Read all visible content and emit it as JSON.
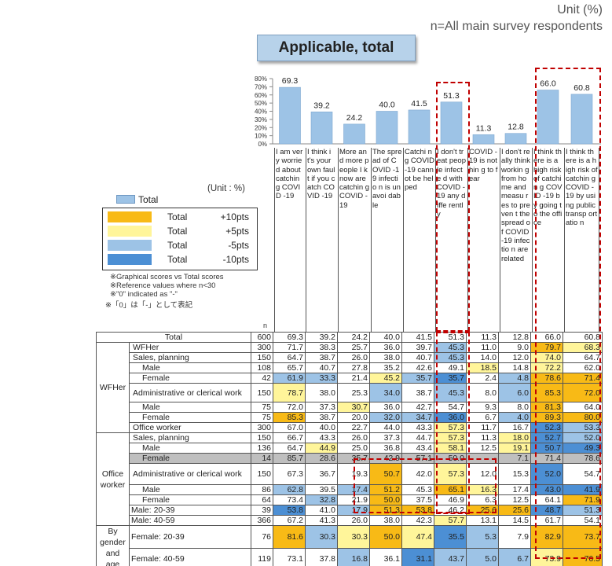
{
  "header": {
    "unit": "Unit (%)",
    "n_note": "n=All main survey respondents",
    "title": "Applicable, total"
  },
  "legend": {
    "unit": "(Unit : %)",
    "total_label": "Total",
    "rows": [
      {
        "a": "Total",
        "b": "+10pts",
        "color": "#f8ba16"
      },
      {
        "a": "Total",
        "b": "+5pts",
        "color": "#fff59a"
      },
      {
        "a": "Total",
        "b": "-5pts",
        "color": "#9dc3e6"
      },
      {
        "a": "Total",
        "b": "-10pts",
        "color": "#4c8fd4"
      }
    ],
    "notes": [
      "※Graphical scores vs Total scores",
      "※Reference values where n<30",
      "※\"0\" indicated as \"-\"",
      "※「0」は「-」として表記"
    ]
  },
  "chart_data": {
    "type": "bar",
    "ylim": [
      0,
      80
    ],
    "ytick_labels": [
      "80%",
      "70%",
      "60%",
      "50%",
      "40%",
      "30%",
      "20%",
      "10%",
      "0%"
    ],
    "values": [
      69.3,
      39.2,
      24.2,
      40.0,
      41.5,
      51.3,
      11.3,
      12.8,
      66.0,
      60.8
    ],
    "categories": [
      "I am very worried about catching COVID-19",
      "I think it's your own fault if you catch COVID-19",
      "More and more people I know are catching COVID-19",
      "The spread of COVID-19 infection is unavoidable",
      "Catching COVID-19 cannot be helped",
      "I don't treat people infected with COVID-19 any differently",
      "COVID-19 is nothing to fear",
      "I don't really think working from home and measures to prevent the spread of COVID-19 infection are related",
      "I think there is a high risk of catching COVID-19 by going to the office",
      "I think there is a high risk of catching COVID-19 by using public transportation"
    ],
    "col_text": [
      "I am very worrie d about catchin g COVID -19",
      "I think it's your own fault if you catch COVID -19",
      "More and more people I know are catchin g COVID -19",
      "The spread of COVID -19 infectio n is unavoi dable",
      "Catchi ng COVID -19 cannot be helped",
      "I don't treat people infecte d with COVID -19 any diffe rently",
      "COVID -19 is nothin g to fear",
      "I don't really think workin g from home and measu res to preven t the spread of COVID -19 infectio n are related",
      "I think there is a high risk of catchin g COVID -19 by going to the office",
      "I think there is a high risk of catchin g COVID -19 by using public transp ortatio n"
    ],
    "value_labels": [
      "69.3",
      "39.2",
      "24.2",
      "40.0",
      "41.5",
      "51.3",
      "11.3",
      "12.8",
      "66.0",
      "60.8"
    ],
    "series_name": "Total",
    "bar_color": "#9dc3e6"
  },
  "table": {
    "n_header": "n",
    "groups": [
      {
        "label": "WFHer",
        "start": 1,
        "span": 8
      },
      {
        "label": "Office worker",
        "start": 9,
        "span": 8
      },
      {
        "label": "By gender and age",
        "start": 17,
        "span": 4
      }
    ],
    "rows": [
      {
        "label": "Total",
        "n": "600",
        "v": [
          "69.3",
          "39.2",
          "24.2",
          "40.0",
          "41.5",
          "51.3",
          "11.3",
          "12.8",
          "66.0",
          "60.8"
        ],
        "c": [
          "",
          "",
          "",
          "",
          "",
          "",
          "",
          "",
          "",
          ""
        ],
        "indent": 0
      },
      {
        "label": "WFHer",
        "n": "300",
        "v": [
          "71.7",
          "38.3",
          "25.7",
          "36.0",
          "39.7",
          "45.3",
          "11.0",
          "9.0",
          "79.7",
          "68.3"
        ],
        "c": [
          "",
          "",
          "",
          "",
          "",
          "l",
          "",
          "",
          "o",
          "y"
        ],
        "indent": 1
      },
      {
        "label": "Sales, planning",
        "n": "150",
        "v": [
          "64.7",
          "38.7",
          "26.0",
          "38.0",
          "40.7",
          "45.3",
          "14.0",
          "12.0",
          "74.0",
          "64.7"
        ],
        "c": [
          "",
          "",
          "",
          "",
          "",
          "l",
          "",
          "",
          "y",
          ""
        ],
        "indent": 1
      },
      {
        "label": "Male",
        "n": "108",
        "v": [
          "65.7",
          "40.7",
          "27.8",
          "35.2",
          "42.6",
          "49.1",
          "18.5",
          "14.8",
          "72.2",
          "62.0"
        ],
        "c": [
          "",
          "",
          "",
          "",
          "",
          "",
          "y",
          "",
          "y",
          ""
        ],
        "indent": 2
      },
      {
        "label": "Female",
        "n": "42",
        "v": [
          "61.9",
          "33.3",
          "21.4",
          "45.2",
          "35.7",
          "35.7",
          "2.4",
          "4.8",
          "78.6",
          "71.4"
        ],
        "c": [
          "l",
          "l",
          "",
          "y",
          "l",
          "d",
          "",
          "l",
          "o",
          "o"
        ],
        "indent": 2
      },
      {
        "label": "Administrative or clerical work",
        "n": "150",
        "v": [
          "78.7",
          "38.0",
          "25.3",
          "34.0",
          "38.7",
          "45.3",
          "8.0",
          "6.0",
          "85.3",
          "72.0"
        ],
        "c": [
          "y",
          "",
          "",
          "l",
          "",
          "l",
          "",
          "l",
          "o",
          "o"
        ],
        "indent": 1
      },
      {
        "label": "Male",
        "n": "75",
        "v": [
          "72.0",
          "37.3",
          "30.7",
          "36.0",
          "42.7",
          "54.7",
          "9.3",
          "8.0",
          "81.3",
          "64.0"
        ],
        "c": [
          "",
          "",
          "y",
          "",
          "",
          "",
          "",
          "",
          "o",
          ""
        ],
        "indent": 2
      },
      {
        "label": "Female",
        "n": "75",
        "v": [
          "85.3",
          "38.7",
          "20.0",
          "32.0",
          "34.7",
          "36.0",
          "6.7",
          "4.0",
          "89.3",
          "80.0"
        ],
        "c": [
          "o",
          "",
          "",
          "l",
          "l",
          "d",
          "",
          "l",
          "o",
          "o"
        ],
        "indent": 2
      },
      {
        "label": "Office worker",
        "n": "300",
        "v": [
          "67.0",
          "40.0",
          "22.7",
          "44.0",
          "43.3",
          "57.3",
          "11.7",
          "16.7",
          "52.3",
          "53.3"
        ],
        "c": [
          "",
          "",
          "",
          "",
          "",
          "y",
          "",
          "",
          "d",
          "l"
        ],
        "indent": 1
      },
      {
        "label": "Sales, planning",
        "n": "150",
        "v": [
          "66.7",
          "43.3",
          "26.0",
          "37.3",
          "44.7",
          "57.3",
          "11.3",
          "18.0",
          "52.7",
          "52.0"
        ],
        "c": [
          "",
          "",
          "",
          "",
          "",
          "y",
          "",
          "y",
          "d",
          "l"
        ],
        "indent": 1
      },
      {
        "label": "Male",
        "n": "136",
        "v": [
          "64.7",
          "44.9",
          "25.0",
          "36.8",
          "43.4",
          "58.1",
          "12.5",
          "19.1",
          "50.7",
          "49.3"
        ],
        "c": [
          "",
          "y",
          "",
          "",
          "",
          "y",
          "",
          "y",
          "d",
          "d"
        ],
        "indent": 2
      },
      {
        "label": "Female",
        "n": "14",
        "v": [
          "85.7",
          "28.6",
          "35.7",
          "42.9",
          "57.1",
          "50.0",
          "-",
          "7.1",
          "71.4",
          "78.6"
        ],
        "c": [
          "",
          "",
          "",
          "",
          "",
          "",
          "",
          "",
          "",
          ""
        ],
        "indent": 2,
        "gray": true
      },
      {
        "label": "Administrative or clerical work",
        "n": "150",
        "v": [
          "67.3",
          "36.7",
          "19.3",
          "50.7",
          "42.0",
          "57.3",
          "12.0",
          "15.3",
          "52.0",
          "54.7"
        ],
        "c": [
          "",
          "",
          "",
          "o",
          "",
          "y",
          "",
          "",
          "d",
          ""
        ],
        "indent": 1
      },
      {
        "label": "Male",
        "n": "86",
        "v": [
          "62.8",
          "39.5",
          "17.4",
          "51.2",
          "45.3",
          "65.1",
          "16.3",
          "17.4",
          "43.0",
          "41.9"
        ],
        "c": [
          "l",
          "",
          "l",
          "o",
          "",
          "o",
          "y",
          "",
          "d",
          "d"
        ],
        "indent": 2
      },
      {
        "label": "Female",
        "n": "64",
        "v": [
          "73.4",
          "32.8",
          "21.9",
          "50.0",
          "37.5",
          "46.9",
          "6.3",
          "12.5",
          "64.1",
          "71.9"
        ],
        "c": [
          "",
          "l",
          "",
          "o",
          "",
          "",
          "",
          "",
          "",
          "o"
        ],
        "indent": 2
      },
      {
        "label": "Male: 20-39",
        "n": "39",
        "v": [
          "53.8",
          "41.0",
          "17.9",
          "51.3",
          "53.8",
          "46.2",
          "25.6",
          "25.6",
          "48.7",
          "51.3"
        ],
        "c": [
          "d",
          "",
          "l",
          "o",
          "o",
          "",
          "o",
          "o",
          "d",
          "l"
        ],
        "indent": 0
      },
      {
        "label": "Male: 40-59",
        "n": "366",
        "v": [
          "67.2",
          "41.3",
          "26.0",
          "38.0",
          "42.3",
          "57.7",
          "13.1",
          "14.5",
          "61.7",
          "54.1"
        ],
        "c": [
          "",
          "",
          "",
          "",
          "",
          "y",
          "",
          "",
          "",
          ""
        ],
        "indent": 0
      },
      {
        "label": "Female: 20-39",
        "n": "76",
        "v": [
          "81.6",
          "30.3",
          "30.3",
          "50.0",
          "47.4",
          "35.5",
          "5.3",
          "7.9",
          "82.9",
          "73.7"
        ],
        "c": [
          "o",
          "l",
          "y",
          "o",
          "y",
          "d",
          "l",
          "",
          "o",
          "o"
        ],
        "indent": 0
      },
      {
        "label": "Female: 40-59",
        "n": "119",
        "v": [
          "73.1",
          "37.8",
          "16.8",
          "36.1",
          "31.1",
          "43.7",
          "5.0",
          "6.7",
          "73.9",
          "76.5"
        ],
        "c": [
          "",
          "",
          "l",
          "",
          "d",
          "l",
          "l",
          "l",
          "y",
          "o"
        ],
        "indent": 0
      }
    ]
  }
}
